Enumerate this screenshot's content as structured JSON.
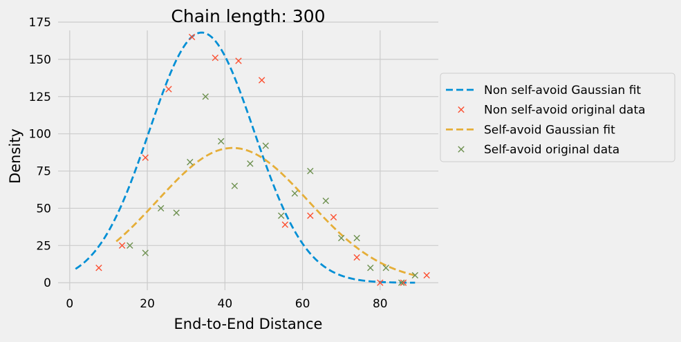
{
  "chart_data": {
    "type": "line",
    "title": "Chain length: 300",
    "xlabel": "End-to-End Distance",
    "ylabel": "Density",
    "xlim": [
      -3,
      95
    ],
    "ylim": [
      -5,
      175
    ],
    "xticks": [
      0,
      20,
      40,
      60,
      80
    ],
    "yticks": [
      0,
      25,
      50,
      75,
      100,
      125,
      150,
      175
    ],
    "grid": true,
    "legend_position": "right, outside plot",
    "series": [
      {
        "name": "Non self-avoid Gaussian fit",
        "kind": "line",
        "style": "dashed",
        "color": "#008fd5",
        "gaussian": {
          "amplitude": 168,
          "mean": 34,
          "sigma": 13.5
        },
        "x_range": [
          1.5,
          89
        ]
      },
      {
        "name": "Non self-avoid original data",
        "kind": "scatter",
        "marker": "x",
        "color": "#fc4f30",
        "points": [
          [
            7.5,
            10
          ],
          [
            13.5,
            25
          ],
          [
            19.5,
            84
          ],
          [
            25.5,
            130
          ],
          [
            31.5,
            165
          ],
          [
            37.5,
            151
          ],
          [
            43.5,
            149
          ],
          [
            49.5,
            136
          ],
          [
            55.5,
            39
          ],
          [
            62,
            45
          ],
          [
            68,
            44
          ],
          [
            74,
            17
          ],
          [
            80,
            0
          ],
          [
            86,
            0
          ],
          [
            92,
            5
          ]
        ]
      },
      {
        "name": "Self-avoid Gaussian fit",
        "kind": "line",
        "style": "dashed",
        "color": "#e5ae38",
        "gaussian": {
          "amplitude": 90.5,
          "mean": 42,
          "sigma": 19.5
        },
        "x_range": [
          12,
          89
        ]
      },
      {
        "name": "Self-avoid original data",
        "kind": "scatter",
        "marker": "x",
        "color": "#6d904f",
        "points": [
          [
            15.5,
            25
          ],
          [
            19.5,
            20
          ],
          [
            23.5,
            50
          ],
          [
            27.5,
            47
          ],
          [
            31,
            81
          ],
          [
            35,
            125
          ],
          [
            39,
            95
          ],
          [
            42.5,
            65
          ],
          [
            46.5,
            80
          ],
          [
            50.5,
            92
          ],
          [
            54.5,
            45
          ],
          [
            58,
            60
          ],
          [
            62,
            75
          ],
          [
            66,
            55
          ],
          [
            70,
            30
          ],
          [
            74,
            30
          ],
          [
            77.5,
            10
          ],
          [
            81.5,
            10
          ],
          [
            85.5,
            0
          ],
          [
            89,
            5
          ]
        ]
      }
    ]
  }
}
